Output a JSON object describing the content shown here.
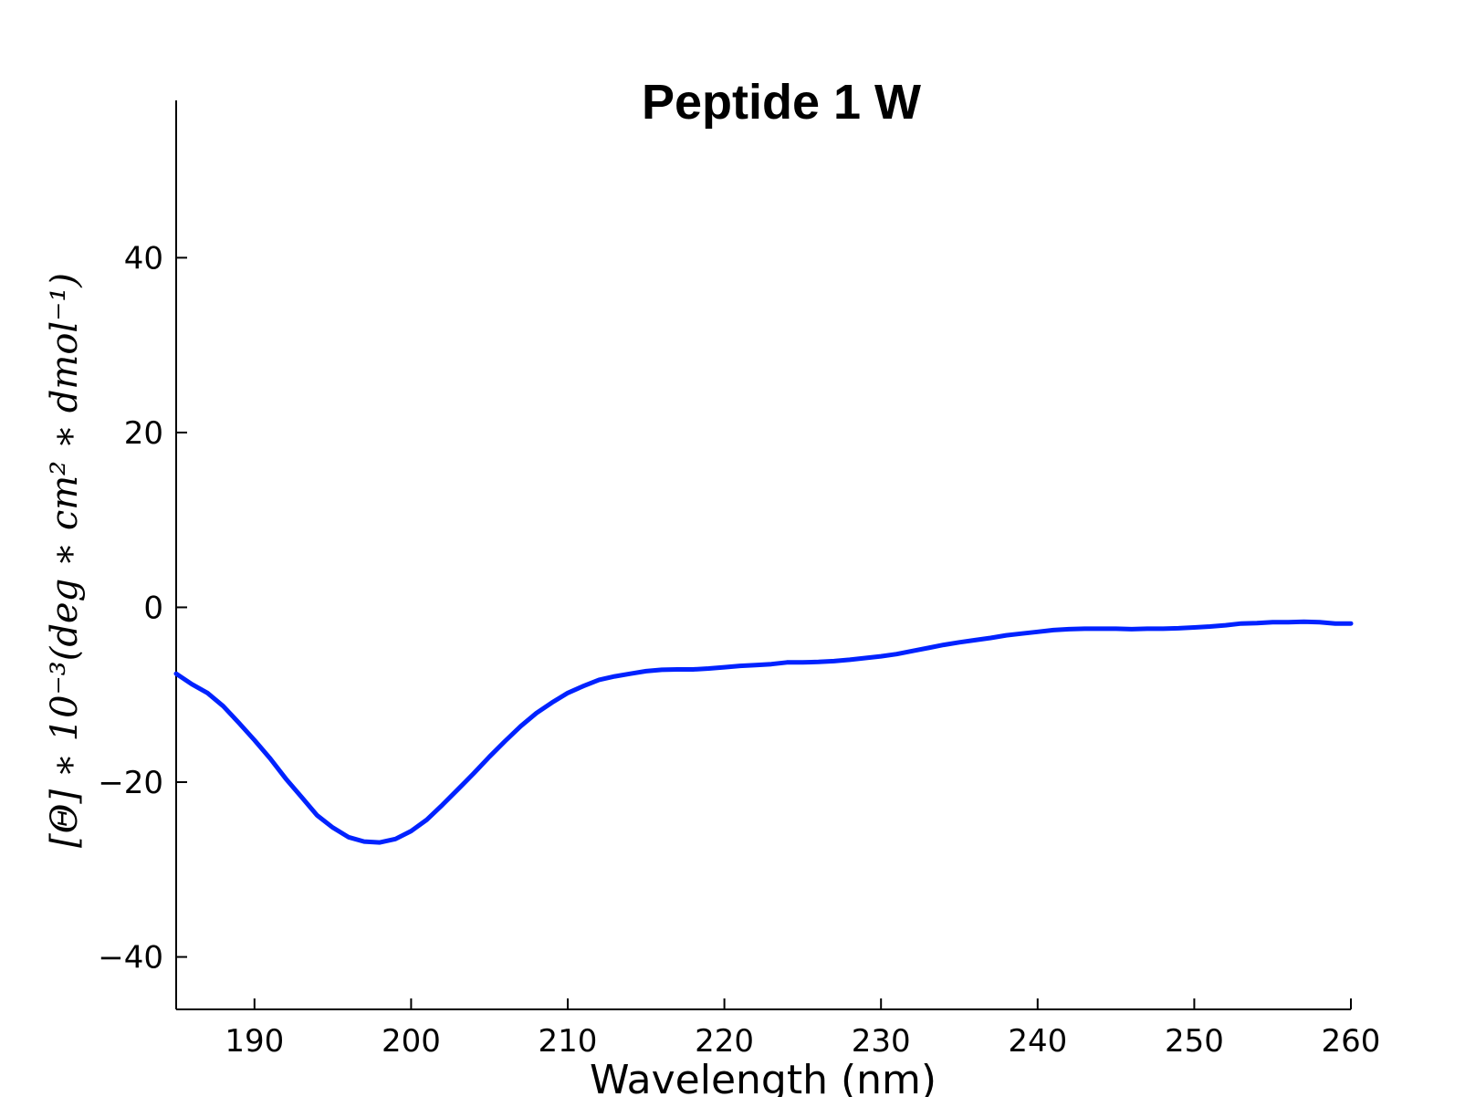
{
  "chart_data": {
    "type": "line",
    "title": "Peptide 1 W",
    "xlabel": "Wavelength (nm)",
    "ylabel": "[Θ] ∗ 10⁻³(deg ∗ cm² ∗ dmol⁻¹)",
    "xlim": [
      185,
      260
    ],
    "ylim": [
      -46,
      58
    ],
    "xticks": [
      190,
      200,
      210,
      220,
      230,
      240,
      250,
      260
    ],
    "xtick_labels": [
      "190",
      "200",
      "210",
      "220",
      "230",
      "240",
      "250",
      "260"
    ],
    "yticks": [
      -40,
      -20,
      0,
      20,
      40
    ],
    "ytick_labels": [
      "−40",
      "−20",
      "0",
      "20",
      "40"
    ],
    "grid": false,
    "series": [
      {
        "color": "#0022ff",
        "x": [
          185,
          186,
          187,
          188,
          189,
          190,
          191,
          192,
          193,
          194,
          195,
          196,
          197,
          198,
          199,
          200,
          201,
          202,
          203,
          204,
          205,
          206,
          207,
          208,
          209,
          210,
          211,
          212,
          213,
          214,
          215,
          216,
          217,
          218,
          219,
          220,
          221,
          222,
          223,
          224,
          225,
          226,
          227,
          228,
          229,
          230,
          231,
          232,
          233,
          234,
          235,
          236,
          237,
          238,
          239,
          240,
          241,
          242,
          243,
          244,
          245,
          246,
          247,
          248,
          249,
          250,
          251,
          252,
          253,
          254,
          255,
          256,
          257,
          258,
          259,
          260
        ],
        "y": [
          -7.6,
          -8.8,
          -9.8,
          -11.3,
          -13.2,
          -15.2,
          -17.3,
          -19.6,
          -21.7,
          -23.8,
          -25.2,
          -26.3,
          -26.8,
          -26.9,
          -26.5,
          -25.6,
          -24.3,
          -22.6,
          -20.8,
          -19.0,
          -17.1,
          -15.3,
          -13.6,
          -12.1,
          -10.9,
          -9.8,
          -9.0,
          -8.3,
          -7.9,
          -7.6,
          -7.3,
          -7.15,
          -7.1,
          -7.1,
          -7.0,
          -6.85,
          -6.7,
          -6.6,
          -6.5,
          -6.3,
          -6.3,
          -6.25,
          -6.15,
          -6.0,
          -5.8,
          -5.6,
          -5.35,
          -5.0,
          -4.65,
          -4.3,
          -4.0,
          -3.75,
          -3.5,
          -3.2,
          -3.0,
          -2.8,
          -2.6,
          -2.5,
          -2.45,
          -2.45,
          -2.45,
          -2.5,
          -2.45,
          -2.45,
          -2.4,
          -2.3,
          -2.2,
          -2.05,
          -1.85,
          -1.8,
          -1.7,
          -1.7,
          -1.65,
          -1.7,
          -1.85,
          -1.85
        ]
      }
    ]
  }
}
